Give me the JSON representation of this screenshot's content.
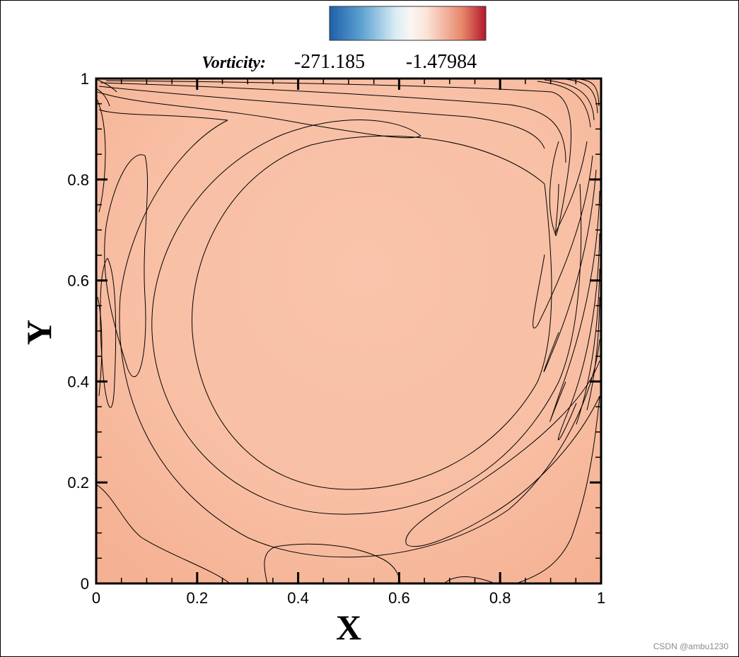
{
  "chart_data": {
    "type": "heatmap",
    "subtype": "contour",
    "title": "",
    "xlabel": "X",
    "ylabel": "Y",
    "xlim": [
      0,
      1
    ],
    "ylim": [
      0,
      1
    ],
    "x_ticks": [
      0,
      0.2,
      0.4,
      0.6,
      0.8,
      1
    ],
    "y_ticks": [
      0,
      0.2,
      0.4,
      0.6,
      0.8,
      1
    ],
    "x_tick_labels": [
      "0",
      "0.2",
      "0.4",
      "0.6",
      "0.8",
      "1"
    ],
    "y_tick_labels": [
      "0",
      "0.2",
      "0.4",
      "0.6",
      "0.8",
      "1"
    ],
    "grid": false,
    "colorbar": {
      "label": "Vorticity:",
      "min_label": "-271.185",
      "max_label": "-1.47984",
      "colormap": [
        "#1f5fa8",
        "#5aa0d0",
        "#d8ecf4",
        "#fbe4d8",
        "#e8866a",
        "#b2182b"
      ],
      "placement": "top"
    },
    "field_color": "#f8c1a6",
    "contour_color": "#000000"
  },
  "watermark": "CSDN @ambu1230"
}
